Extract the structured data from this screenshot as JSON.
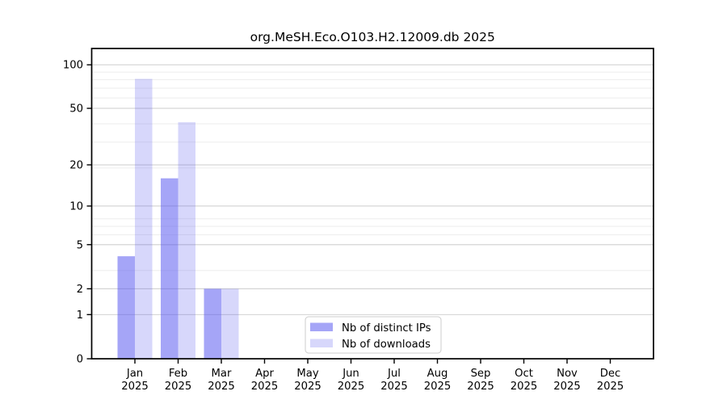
{
  "chart_data": {
    "type": "bar",
    "title": "org.MeSH.Eco.O103.H2.12009.db 2025",
    "categories": [
      {
        "m": "Jan",
        "y": "2025"
      },
      {
        "m": "Feb",
        "y": "2025"
      },
      {
        "m": "Mar",
        "y": "2025"
      },
      {
        "m": "Apr",
        "y": "2025"
      },
      {
        "m": "May",
        "y": "2025"
      },
      {
        "m": "Jun",
        "y": "2025"
      },
      {
        "m": "Jul",
        "y": "2025"
      },
      {
        "m": "Aug",
        "y": "2025"
      },
      {
        "m": "Sep",
        "y": "2025"
      },
      {
        "m": "Oct",
        "y": "2025"
      },
      {
        "m": "Nov",
        "y": "2025"
      },
      {
        "m": "Dec",
        "y": "2025"
      }
    ],
    "series": [
      {
        "key": "distinct-ips",
        "name": "Nb of distinct IPs",
        "base_color": "#5555f0",
        "fill_opacity": 0.53,
        "rendered_color": "#a5a5f6",
        "values": [
          4,
          16,
          2,
          0,
          0,
          0,
          0,
          0,
          0,
          0,
          0,
          0
        ]
      },
      {
        "key": "downloads",
        "name": "Nb of downloads",
        "base_color": "#5555f0",
        "fill_opacity": 0.235,
        "rendered_color": "#d9d9fb",
        "values": [
          80,
          40,
          2,
          0,
          0,
          0,
          0,
          0,
          0,
          0,
          0,
          0
        ]
      }
    ],
    "xlabel": "",
    "ylabel": "",
    "y_scale": "log1p",
    "ylim": [
      0,
      130
    ],
    "y_ticks": [
      0,
      1,
      2,
      5,
      10,
      20,
      50,
      100
    ],
    "y_minor_gridlines": [
      2,
      3,
      5,
      6,
      7,
      8,
      19,
      29,
      39,
      59,
      69,
      79,
      89
    ],
    "grid": true,
    "legend_position": "lower center",
    "colors": {
      "background": "#ffffff",
      "axis": "#000000",
      "grid_major": "#d2d2d2",
      "grid_minor": "#ededed",
      "legend_border": "#cccccc",
      "legend_background": "#ffffff"
    }
  }
}
